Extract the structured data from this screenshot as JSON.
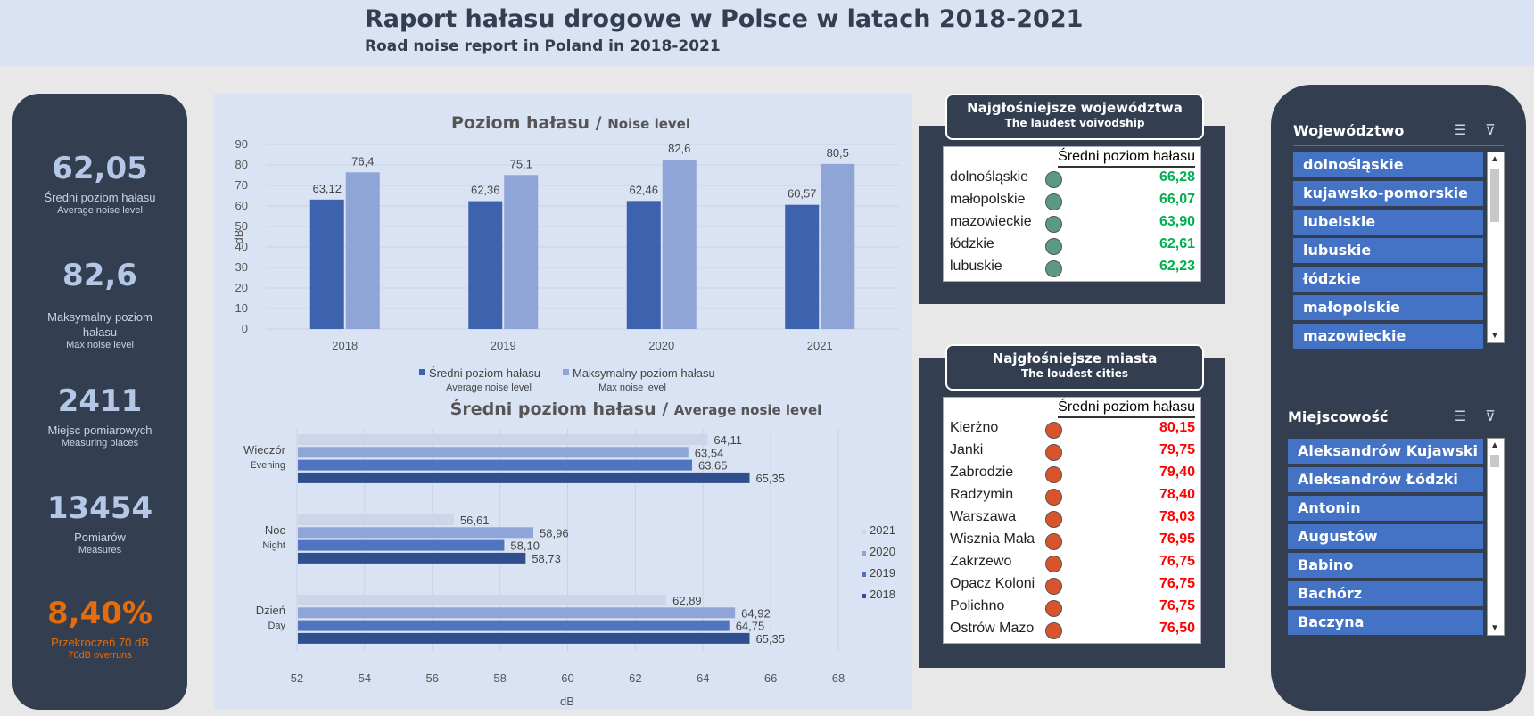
{
  "header": {
    "title": "Raport hałasu drogowe w Polsce w latach 2018-2021",
    "subtitle": "Road noise report in Poland in 2018-2021"
  },
  "kpis": [
    {
      "value": "62,05",
      "label": "Średni poziom hałasu",
      "sub": "Average noise level"
    },
    {
      "value": "82,6",
      "label": "Maksymalny poziom hałasu",
      "sub": "Max noise level"
    },
    {
      "value": "2411",
      "label": "Miejsc pomiarowych",
      "sub": "Measuring places"
    },
    {
      "value": "13454",
      "label": "Pomiarów",
      "sub": "Measures"
    },
    {
      "value": "8,40%",
      "label": "Przekroczeń 70 dB",
      "sub": "70dB overruns"
    }
  ],
  "colors": {
    "dark": "#333f50",
    "avg_bar": "#3e63ae",
    "max_bar": "#8fa5d7",
    "green": "#00b050",
    "red": "#ff0000",
    "green_dot": "#5a9a80",
    "red_dot": "#d9542c",
    "slicer_item": "#4472c4"
  },
  "chart_data": [
    {
      "type": "bar",
      "title": "Poziom hałasu",
      "title_en": "Noise level",
      "categories": [
        "2018",
        "2019",
        "2020",
        "2021"
      ],
      "series": [
        {
          "name": "Średni poziom hałasu",
          "name_en": "Average noise level",
          "values": [
            63.12,
            62.36,
            62.46,
            60.57
          ],
          "labels": [
            "63,12",
            "62,36",
            "62,46",
            "60,57"
          ]
        },
        {
          "name": "Maksymalny poziom hałasu",
          "name_en": "Max noise level",
          "values": [
            76.4,
            75.1,
            82.6,
            80.5
          ],
          "labels": [
            "76,4",
            "75,1",
            "82,6",
            "80,5"
          ]
        }
      ],
      "ylabel": "dB",
      "ylim": [
        0,
        90
      ],
      "yticks": [
        "0",
        "10",
        "20",
        "30",
        "40",
        "50",
        "60",
        "70",
        "80",
        "90"
      ],
      "legend": "bottom",
      "grid": true
    },
    {
      "type": "bar",
      "orientation": "horizontal",
      "title": "Średni poziom hałasu",
      "title_en": "Average nosie level",
      "categories": [
        {
          "name": "Wieczór",
          "name_en": "Evening"
        },
        {
          "name": "Noc",
          "name_en": "Night"
        },
        {
          "name": "Dzień",
          "name_en": "Day"
        }
      ],
      "series": [
        {
          "name": "2021",
          "values": [
            64.11,
            56.61,
            62.89
          ],
          "labels": [
            "64,11",
            "56,61",
            "62,89"
          ]
        },
        {
          "name": "2020",
          "values": [
            63.54,
            58.96,
            64.92
          ],
          "labels": [
            "63,54",
            "58,96",
            "64,92"
          ]
        },
        {
          "name": "2019",
          "values": [
            63.65,
            58.1,
            64.75
          ],
          "labels": [
            "63,65",
            "58,10",
            "64,75"
          ]
        },
        {
          "name": "2018",
          "values": [
            65.35,
            58.73,
            65.35
          ],
          "labels": [
            "65,35",
            "58,73",
            "65,35"
          ]
        }
      ],
      "xlabel": "dB",
      "xlim": [
        52,
        68
      ],
      "xticks": [
        "52",
        "54",
        "56",
        "58",
        "60",
        "62",
        "64",
        "66",
        "68"
      ],
      "series_colors": [
        "#cdd5e8",
        "#8fa5d7",
        "#4f74c0",
        "#2f4f8f"
      ],
      "legend": "right",
      "grid": true
    }
  ],
  "voivodeships_top": {
    "title": "Najgłośniejsze województwa",
    "subtitle": "The laudest  voivodship",
    "column": "Średni poziom hałasu",
    "rows": [
      {
        "name": "dolnośląskie",
        "value": "66,28"
      },
      {
        "name": "małopolskie",
        "value": "66,07"
      },
      {
        "name": "mazowieckie",
        "value": "63,90"
      },
      {
        "name": "łódzkie",
        "value": "62,61"
      },
      {
        "name": "lubuskie",
        "value": "62,23"
      }
    ]
  },
  "cities_top": {
    "title": "Najgłośniejsze miasta",
    "subtitle": "The loudest cities",
    "column": "Średni poziom hałasu",
    "rows": [
      {
        "name": "Kierżno",
        "value": "80,15"
      },
      {
        "name": "Janki",
        "value": "79,75"
      },
      {
        "name": "Zabrodzie",
        "value": "79,40"
      },
      {
        "name": "Radzymin",
        "value": "78,40"
      },
      {
        "name": "Warszawa",
        "value": "78,03"
      },
      {
        "name": "Wisznia Mała",
        "value": "76,95"
      },
      {
        "name": "Zakrzewo",
        "value": "76,75"
      },
      {
        "name": "Opacz Koloni",
        "value": "76,75"
      },
      {
        "name": "Polichno",
        "value": "76,75"
      },
      {
        "name": "Ostrów Mazo",
        "value": "76,50"
      }
    ]
  },
  "slicer_voivodeship": {
    "title": "Województwo",
    "items": [
      "dolnośląskie",
      "kujawsko-pomorskie",
      "lubelskie",
      "lubuskie",
      "łódzkie",
      "małopolskie",
      "mazowieckie"
    ]
  },
  "slicer_city": {
    "title": "Miejscowość",
    "items": [
      "Aleksandrów Kujawski",
      "Aleksandrów Łódzki",
      "Antonin",
      "Augustów",
      "Babino",
      "Bachórz",
      "Baczyna"
    ]
  },
  "icons": {
    "multiselect": "multiselect-icon",
    "clear_filter": "clear-filter-icon",
    "scroll_up": "scroll-up-icon",
    "scroll_down": "scroll-down-icon"
  }
}
